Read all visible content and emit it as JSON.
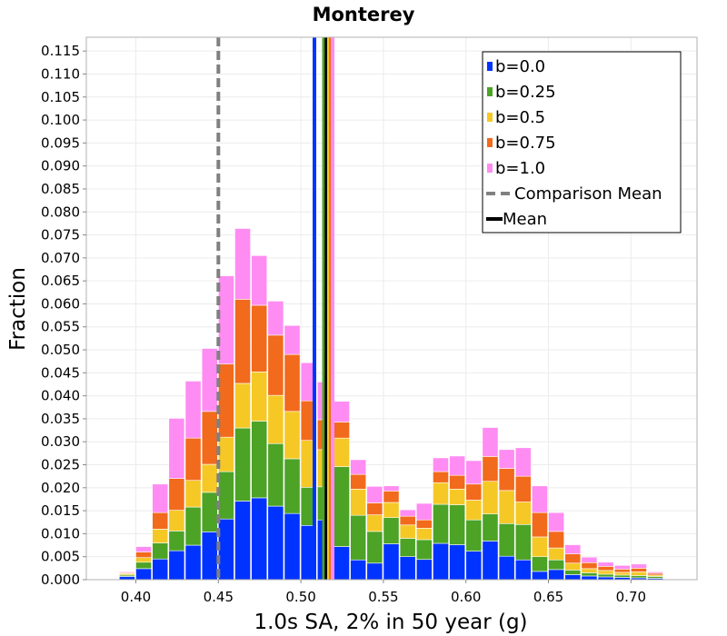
{
  "chart_data": {
    "type": "bar",
    "stacked": true,
    "title": "Monterey",
    "xlabel": "1.0s SA, 2% in 50 year (g)",
    "ylabel": "Fraction",
    "xlim": [
      0.37,
      0.74
    ],
    "ylim": [
      0,
      0.118
    ],
    "grid": true,
    "legend_position": "top-right",
    "bin_width": 0.01,
    "x_ticks": [
      "0.40",
      "0.45",
      "0.50",
      "0.55",
      "0.60",
      "0.65",
      "0.70"
    ],
    "y_ticks": [
      "0.000",
      "0.005",
      "0.010",
      "0.015",
      "0.020",
      "0.025",
      "0.030",
      "0.035",
      "0.040",
      "0.045",
      "0.050",
      "0.055",
      "0.060",
      "0.065",
      "0.070",
      "0.075",
      "0.080",
      "0.085",
      "0.090",
      "0.095",
      "0.100",
      "0.105",
      "0.110",
      "0.115"
    ],
    "x": [
      0.385,
      0.395,
      0.405,
      0.415,
      0.425,
      0.435,
      0.445,
      0.455,
      0.465,
      0.475,
      0.485,
      0.495,
      0.505,
      0.515,
      0.525,
      0.535,
      0.545,
      0.555,
      0.565,
      0.575,
      0.585,
      0.595,
      0.605,
      0.615,
      0.625,
      0.635,
      0.645,
      0.655,
      0.665,
      0.675,
      0.685,
      0.695,
      0.705,
      0.715,
      0.725
    ],
    "series": [
      {
        "name": "b=0.0",
        "color": "#0033ff",
        "values": [
          0.0001,
          0.0007,
          0.0024,
          0.0045,
          0.0063,
          0.0075,
          0.0104,
          0.0132,
          0.0171,
          0.0178,
          0.016,
          0.0144,
          0.0118,
          0.013,
          0.0072,
          0.0043,
          0.0036,
          0.0078,
          0.005,
          0.0044,
          0.0079,
          0.0076,
          0.0062,
          0.0084,
          0.0051,
          0.0043,
          0.0018,
          0.0022,
          0.0011,
          0.0008,
          0.0006,
          0.0005,
          0.0004,
          0.0003,
          0.0001
        ]
      },
      {
        "name": "b=0.25",
        "color": "#4ca326",
        "values": [
          0.0001,
          0.0003,
          0.0014,
          0.0035,
          0.0043,
          0.0083,
          0.0086,
          0.0103,
          0.0159,
          0.0167,
          0.0136,
          0.0119,
          0.0083,
          0.0072,
          0.0174,
          0.0097,
          0.0069,
          0.0057,
          0.004,
          0.0043,
          0.0085,
          0.0087,
          0.0068,
          0.0059,
          0.0071,
          0.0077,
          0.0032,
          0.0021,
          0.001,
          0.0007,
          0.0006,
          0.0005,
          0.0005,
          0.0004,
          0.0001
        ]
      },
      {
        "name": "b=0.5",
        "color": "#f5c826",
        "values": [
          0.0001,
          0.0003,
          0.001,
          0.003,
          0.0045,
          0.0058,
          0.0061,
          0.0075,
          0.0097,
          0.0107,
          0.0105,
          0.0103,
          0.0102,
          0.0081,
          0.0062,
          0.0057,
          0.0036,
          0.0033,
          0.0029,
          0.0025,
          0.0047,
          0.0034,
          0.0043,
          0.0071,
          0.0072,
          0.0049,
          0.0043,
          0.0026,
          0.0015,
          0.0009,
          0.0008,
          0.0006,
          0.0008,
          0.0003,
          0.0001
        ]
      },
      {
        "name": "b=0.75",
        "color": "#f26a1c",
        "values": [
          0.0001,
          0.0002,
          0.0012,
          0.0036,
          0.0069,
          0.0092,
          0.0115,
          0.0159,
          0.0183,
          0.0145,
          0.0131,
          0.0124,
          0.0086,
          0.0065,
          0.0035,
          0.0032,
          0.0026,
          0.0025,
          0.0019,
          0.0018,
          0.0024,
          0.003,
          0.0035,
          0.0054,
          0.0048,
          0.0056,
          0.0053,
          0.0036,
          0.002,
          0.0013,
          0.0009,
          0.0007,
          0.0008,
          0.0004,
          0.0001
        ]
      },
      {
        "name": "b=1.0",
        "color": "#ff8cf2",
        "values": [
          0.0001,
          0.0002,
          0.0012,
          0.0062,
          0.0131,
          0.0124,
          0.0137,
          0.0192,
          0.0154,
          0.0108,
          0.0074,
          0.0063,
          0.0083,
          0.0082,
          0.0045,
          0.0032,
          0.0036,
          0.0011,
          0.0014,
          0.0036,
          0.003,
          0.0042,
          0.0051,
          0.0063,
          0.0041,
          0.0062,
          0.0058,
          0.0041,
          0.002,
          0.0012,
          0.0009,
          0.0008,
          0.0009,
          0.0003,
          0.0001
        ]
      }
    ],
    "vertical_lines": [
      {
        "x": 0.45,
        "color": "#808080",
        "style": "dashed",
        "legend": "Comparison Mean"
      },
      {
        "x": 0.5082,
        "color": "#0033ff",
        "style": "solid"
      },
      {
        "x": 0.514,
        "color": "#4ca326",
        "style": "solid"
      },
      {
        "x": 0.5155,
        "color": "#000000",
        "style": "solid",
        "legend": "Mean"
      },
      {
        "x": 0.517,
        "color": "#f5c826",
        "style": "solid"
      },
      {
        "x": 0.5182,
        "color": "#f26a1c",
        "style": "solid"
      },
      {
        "x": 0.5192,
        "color": "#ff8cf2",
        "style": "solid"
      }
    ],
    "legend": [
      {
        "label": "b=0.0",
        "color": "#0033ff",
        "kind": "square"
      },
      {
        "label": "b=0.25",
        "color": "#4ca326",
        "kind": "square"
      },
      {
        "label": "b=0.5",
        "color": "#f5c826",
        "kind": "square"
      },
      {
        "label": "b=0.75",
        "color": "#f26a1c",
        "kind": "square"
      },
      {
        "label": "b=1.0",
        "color": "#ff8cf2",
        "kind": "square"
      },
      {
        "label": "Comparison Mean",
        "color": "#808080",
        "kind": "dashed"
      },
      {
        "label": "Mean",
        "color": "#000000",
        "kind": "solid"
      }
    ]
  }
}
